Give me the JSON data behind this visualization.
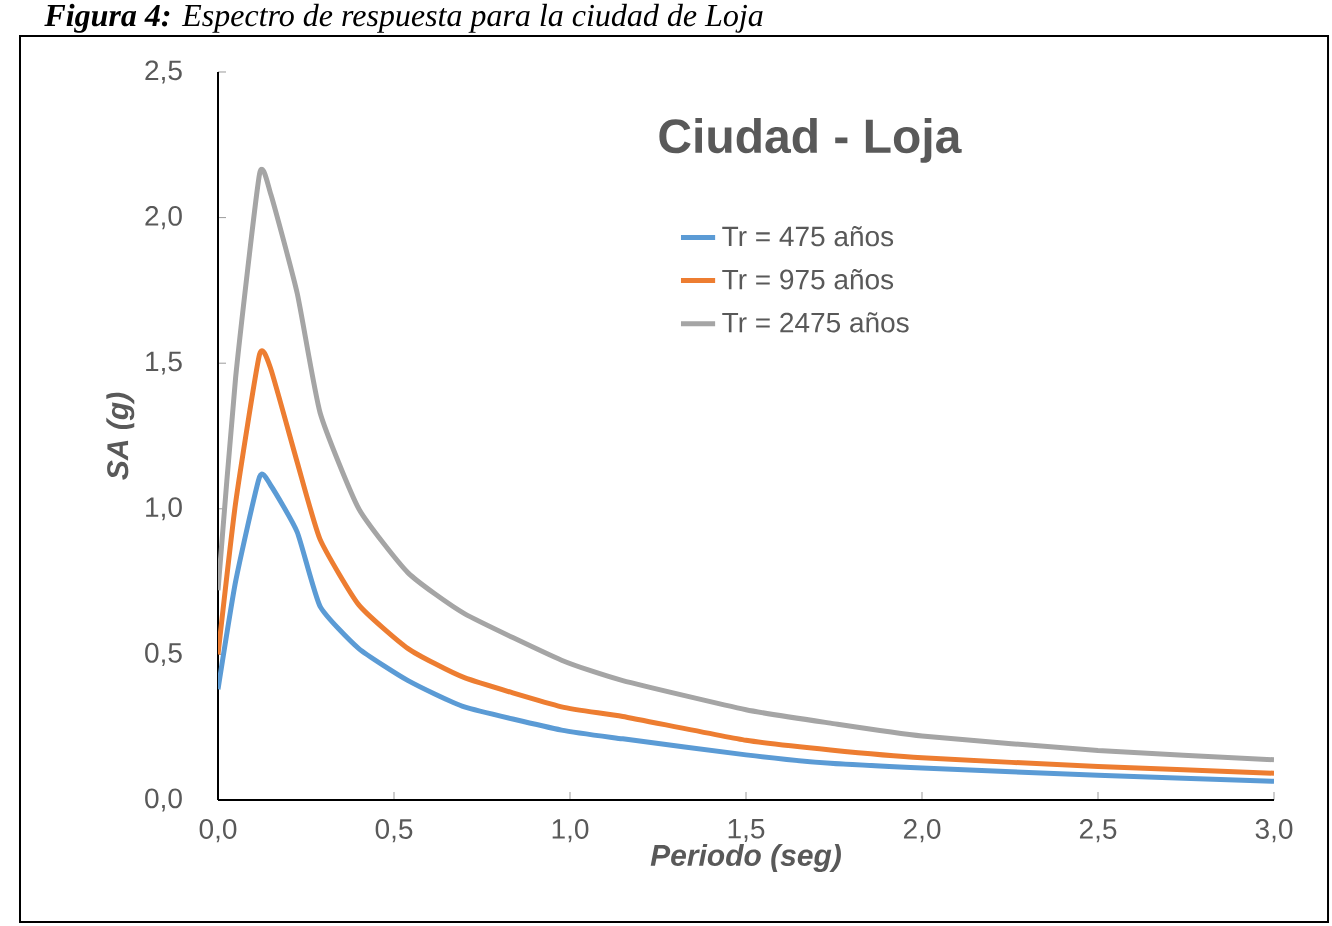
{
  "chart_data": {
    "type": "line",
    "title": "Ciudad - Loja",
    "xlabel": "Periodo (seg)",
    "ylabel": "SA (g)",
    "annotations": [
      "**Figura 4:** Espectro de respuesta para la ciudad de Loja"
    ],
    "x": [
      0,
      0.05,
      0.118,
      0.15,
      0.225,
      0.29,
      0.4,
      0.54,
      0.7,
      0.976,
      1.15,
      1.5,
      1.74,
      2.0,
      2.5,
      3.0
    ],
    "series": [
      {
        "name": "Tr = 475 años",
        "color": "#5b9bd5",
        "values": [
          0.38,
          0.75,
          1.11,
          1.08,
          0.92,
          0.665,
          0.52,
          0.41,
          0.32,
          0.24,
          0.21,
          0.155,
          0.126,
          0.11,
          0.085,
          0.064
        ]
      },
      {
        "name": "Tr = 975 años",
        "color": "#ed7d31",
        "values": [
          0.5,
          1.02,
          1.53,
          1.48,
          1.16,
          0.895,
          0.67,
          0.52,
          0.42,
          0.32,
          0.287,
          0.205,
          0.172,
          0.145,
          0.115,
          0.092
        ]
      },
      {
        "name": "Tr = 2475 años",
        "color": "#a5a5a5",
        "values": [
          0.72,
          1.45,
          2.15,
          2.08,
          1.74,
          1.33,
          1.0,
          0.78,
          0.64,
          0.48,
          0.41,
          0.31,
          0.264,
          0.22,
          0.17,
          0.138
        ]
      }
    ],
    "xlim": [
      0,
      3.0
    ],
    "ylim": [
      0,
      2.5
    ],
    "xticks": [
      {
        "value": 0,
        "label": "0,0"
      },
      {
        "value": 0.5,
        "label": "0,5"
      },
      {
        "value": 1.0,
        "label": "1,0"
      },
      {
        "value": 1.5,
        "label": "1,5"
      },
      {
        "value": 2.0,
        "label": "2,0"
      },
      {
        "value": 2.5,
        "label": "2,5"
      },
      {
        "value": 3.0,
        "label": "3,0"
      }
    ],
    "yticks": [
      {
        "value": 0,
        "label": "0,0"
      },
      {
        "value": 0.5,
        "label": "0,5"
      },
      {
        "value": 1.0,
        "label": "1,0"
      },
      {
        "value": 1.5,
        "label": "1,5"
      },
      {
        "value": 2.0,
        "label": "2,0"
      },
      {
        "value": 2.5,
        "label": "2,5"
      }
    ],
    "grid": false,
    "legend": "top right",
    "marker": "none",
    "line_style": "solid"
  }
}
